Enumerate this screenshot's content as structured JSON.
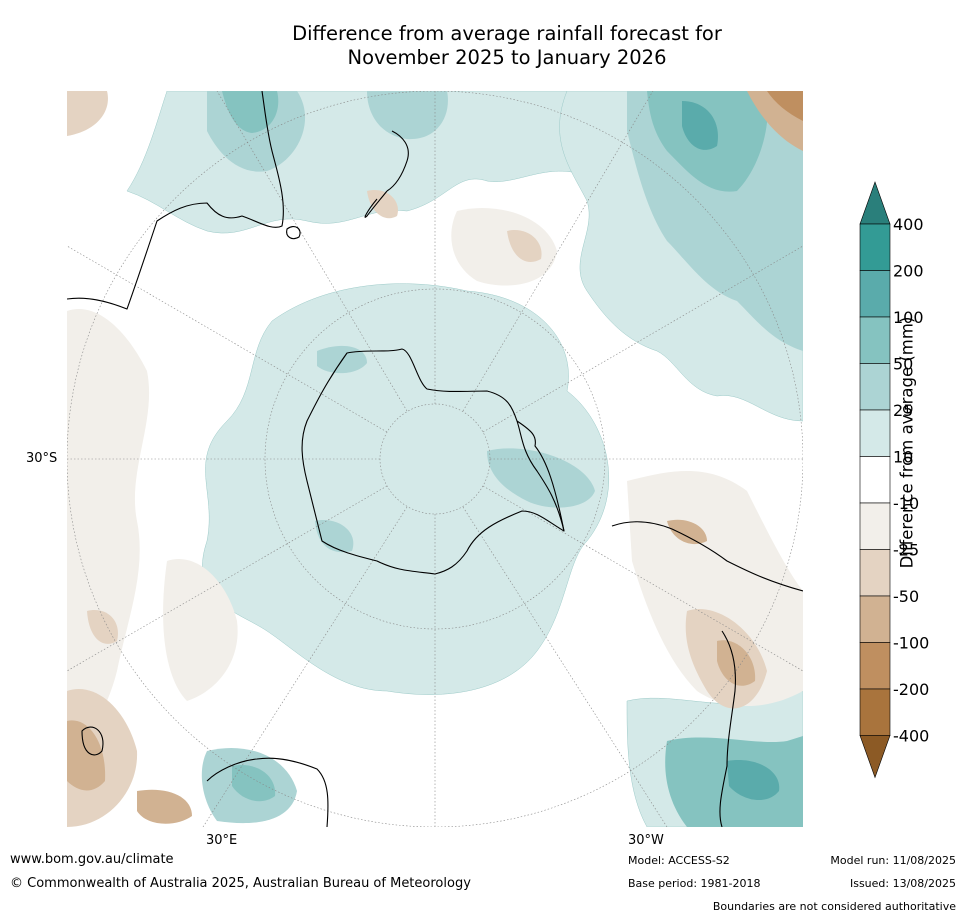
{
  "title": {
    "line1": "Difference from average rainfall forecast for",
    "line2": "November 2025 to January 2026"
  },
  "map": {
    "projection": "south polar stereographic",
    "lat_label": "30°S",
    "lon_labels": [
      "30°E",
      "30°W"
    ],
    "land_outline_color": "#000000",
    "graticule_color": "#888888"
  },
  "colorbar": {
    "title": "Difference from average (mm)",
    "tick_labels": [
      "400",
      "200",
      "100",
      "50",
      "25",
      "10",
      "-10",
      "-25",
      "-50",
      "-100",
      "-200",
      "-400"
    ],
    "bins_top_to_bottom": [
      {
        "range": "200 to 400",
        "color": "#339b95"
      },
      {
        "range": "100 to 200",
        "color": "#5aabab"
      },
      {
        "range": "50 to 100",
        "color": "#85c3c0"
      },
      {
        "range": "25 to 50",
        "color": "#acd4d4"
      },
      {
        "range": "10 to 25",
        "color": "#d4e9e8"
      },
      {
        "range": "-10 to 10",
        "color": "#ffffff"
      },
      {
        "range": "-25 to -10",
        "color": "#f2efea"
      },
      {
        "range": "-50 to -25",
        "color": "#e4d3c2"
      },
      {
        "range": "-100 to -50",
        "color": "#d1b292"
      },
      {
        "range": "-200 to -100",
        "color": "#bf8f60"
      },
      {
        "range": "-400 to -200",
        "color": "#a9743d"
      }
    ],
    "extend_max_color": "#2a7f7b",
    "extend_min_color": "#8c5a25"
  },
  "footer": {
    "url": "www.bom.gov.au/climate",
    "copyright": "© Commonwealth of Australia 2025, Australian Bureau of Meteorology",
    "model": "Model: ACCESS-S2",
    "base_period": "Base period: 1981-2018",
    "model_run": "Model run: 11/08/2025",
    "issued": "Issued: 13/08/2025",
    "disclaimer": "Boundaries are not considered authoritative"
  }
}
